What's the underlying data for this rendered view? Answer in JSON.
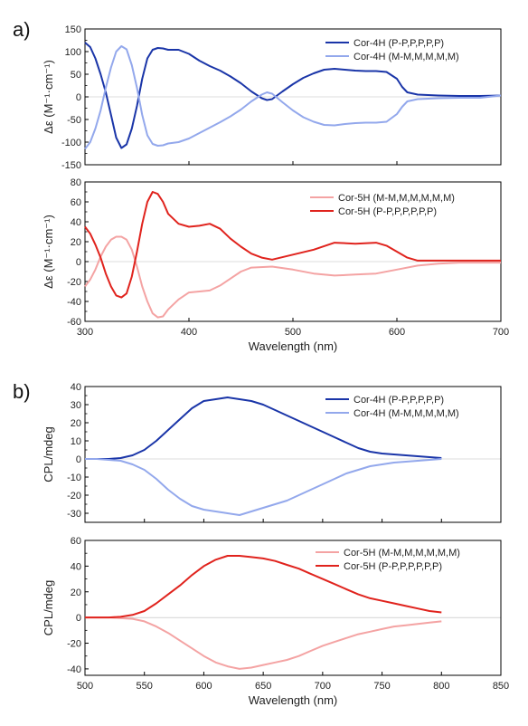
{
  "panel_labels": [
    "a)",
    "b)"
  ],
  "chart_data": [
    {
      "id": "a-top",
      "type": "line",
      "ylabel": "Δε (M⁻¹·cm⁻¹)",
      "xlabel": "",
      "xlim": [
        300,
        700
      ],
      "ylim": [
        -150,
        150
      ],
      "xticks": [],
      "yticks": [
        -150,
        -100,
        -50,
        0,
        50,
        100,
        150
      ],
      "legend_position": "top-right",
      "series": [
        {
          "name": "Cor-4H (P-P,P,P,P,P)",
          "color": "#1a35a8",
          "x": [
            300,
            305,
            310,
            315,
            320,
            325,
            330,
            335,
            340,
            345,
            350,
            355,
            360,
            365,
            370,
            375,
            380,
            390,
            400,
            410,
            420,
            430,
            440,
            450,
            460,
            470,
            475,
            480,
            490,
            500,
            510,
            520,
            530,
            540,
            550,
            560,
            570,
            580,
            590,
            600,
            605,
            610,
            620,
            640,
            660,
            680,
            700
          ],
          "y": [
            120,
            110,
            85,
            50,
            10,
            -40,
            -90,
            -113,
            -105,
            -70,
            -20,
            40,
            85,
            104,
            108,
            107,
            104,
            104,
            95,
            80,
            68,
            58,
            45,
            30,
            12,
            -3,
            -7,
            -5,
            12,
            28,
            42,
            52,
            60,
            62,
            60,
            58,
            57,
            57,
            55,
            40,
            22,
            10,
            5,
            3,
            2,
            2,
            3
          ]
        },
        {
          "name": "Cor-4H (M-M,M,M,M,M)",
          "color": "#93a8ec",
          "x": [
            300,
            305,
            310,
            315,
            320,
            325,
            330,
            335,
            340,
            345,
            350,
            355,
            360,
            365,
            370,
            375,
            380,
            390,
            400,
            410,
            420,
            430,
            440,
            450,
            460,
            470,
            475,
            480,
            490,
            500,
            510,
            520,
            530,
            540,
            550,
            560,
            570,
            580,
            590,
            600,
            605,
            610,
            620,
            640,
            660,
            680,
            700
          ],
          "y": [
            -115,
            -100,
            -70,
            -30,
            20,
            65,
            100,
            112,
            105,
            70,
            20,
            -40,
            -85,
            -104,
            -108,
            -107,
            -103,
            -100,
            -92,
            -80,
            -68,
            -56,
            -43,
            -28,
            -10,
            5,
            10,
            7,
            -12,
            -30,
            -45,
            -55,
            -62,
            -63,
            -60,
            -58,
            -57,
            -57,
            -55,
            -38,
            -22,
            -10,
            -5,
            -3,
            -2,
            -2,
            3
          ]
        }
      ]
    },
    {
      "id": "a-bottom",
      "type": "line",
      "ylabel": "Δε (M⁻¹·cm⁻¹)",
      "xlabel": "Wavelength (nm)",
      "xlim": [
        300,
        700
      ],
      "ylim": [
        -60,
        80
      ],
      "xticks": [
        300,
        400,
        500,
        600,
        700
      ],
      "yticks": [
        -60,
        -40,
        -20,
        0,
        20,
        40,
        60,
        80
      ],
      "legend_position": "top-right",
      "series": [
        {
          "name": "Cor-5H (M-M,M,M,M,M,M)",
          "color": "#f4a3a3",
          "x": [
            300,
            305,
            310,
            315,
            320,
            325,
            330,
            335,
            340,
            345,
            350,
            355,
            360,
            365,
            370,
            375,
            380,
            390,
            400,
            410,
            420,
            430,
            440,
            450,
            460,
            480,
            500,
            520,
            540,
            560,
            580,
            600,
            620,
            640,
            660,
            680,
            700
          ],
          "y": [
            -25,
            -18,
            -8,
            5,
            15,
            22,
            25,
            25,
            22,
            12,
            -5,
            -25,
            -40,
            -52,
            -56,
            -55,
            -48,
            -38,
            -31,
            -30,
            -29,
            -24,
            -17,
            -10,
            -6,
            -5,
            -8,
            -12,
            -14,
            -13,
            -12,
            -8,
            -4,
            -2,
            -1,
            -1,
            -1
          ]
        },
        {
          "name": "Cor-5H (P-P,P,P,P,P,P)",
          "color": "#e0231d",
          "x": [
            300,
            305,
            310,
            315,
            320,
            325,
            330,
            335,
            340,
            345,
            350,
            355,
            360,
            365,
            370,
            375,
            380,
            390,
            400,
            410,
            420,
            430,
            440,
            450,
            460,
            470,
            480,
            500,
            520,
            540,
            560,
            580,
            590,
            600,
            610,
            620,
            640,
            660,
            680,
            700
          ],
          "y": [
            35,
            28,
            17,
            4,
            -12,
            -25,
            -34,
            -36,
            -32,
            -15,
            10,
            38,
            60,
            70,
            68,
            60,
            48,
            38,
            35,
            36,
            38,
            33,
            23,
            15,
            8,
            4,
            2,
            7,
            12,
            19,
            18,
            19,
            16,
            10,
            4,
            1,
            1,
            1,
            1,
            1
          ]
        }
      ]
    },
    {
      "id": "b-top",
      "type": "line",
      "ylabel": "CPL/mdeg",
      "xlabel": "",
      "xlim": [
        500,
        850
      ],
      "ylim": [
        -35,
        40
      ],
      "xticks": [],
      "yticks": [
        -30,
        -20,
        -10,
        0,
        10,
        20,
        30,
        40
      ],
      "legend_position": "top-right",
      "series": [
        {
          "name": "Cor-4H (P-P,P,P,P,P)",
          "color": "#1a35a8",
          "x": [
            500,
            510,
            520,
            530,
            540,
            550,
            560,
            570,
            580,
            590,
            600,
            610,
            620,
            630,
            640,
            650,
            660,
            670,
            680,
            690,
            700,
            710,
            720,
            730,
            740,
            750,
            760,
            770,
            780,
            790,
            800
          ],
          "y": [
            0,
            0,
            0,
            0.5,
            2,
            5,
            10,
            16,
            22,
            28,
            32,
            33,
            34,
            33,
            32,
            30,
            27,
            24,
            21,
            18,
            15,
            12,
            9,
            6,
            4,
            3,
            2.5,
            2,
            1.5,
            1,
            0.5
          ]
        },
        {
          "name": "Cor-4H (M-M,M,M,M,M)",
          "color": "#93a8ec",
          "x": [
            500,
            510,
            520,
            530,
            540,
            550,
            560,
            570,
            580,
            590,
            600,
            610,
            620,
            630,
            640,
            650,
            660,
            670,
            680,
            690,
            700,
            710,
            720,
            730,
            740,
            750,
            760,
            770,
            780,
            790,
            800
          ],
          "y": [
            0,
            0,
            -0.5,
            -1,
            -3,
            -6,
            -11,
            -17,
            -22,
            -26,
            -28,
            -29,
            -30,
            -31,
            -29,
            -27,
            -25,
            -23,
            -20,
            -17,
            -14,
            -11,
            -8,
            -6,
            -4,
            -3,
            -2,
            -1.5,
            -1,
            -0.5,
            0
          ]
        }
      ]
    },
    {
      "id": "b-bottom",
      "type": "line",
      "ylabel": "CPL/mdeg",
      "xlabel": "Wavelength (nm)",
      "xlim": [
        500,
        850
      ],
      "ylim": [
        -45,
        60
      ],
      "xticks": [
        500,
        550,
        600,
        650,
        700,
        750,
        800,
        850
      ],
      "yticks": [
        -40,
        -20,
        0,
        20,
        40,
        60
      ],
      "legend_position": "top-right",
      "series": [
        {
          "name": "Cor-5H (M-M,M,M,M,M,M)",
          "color": "#f4a3a3",
          "x": [
            500,
            510,
            520,
            530,
            540,
            550,
            560,
            570,
            580,
            590,
            600,
            610,
            620,
            630,
            640,
            650,
            660,
            670,
            680,
            690,
            700,
            710,
            720,
            730,
            740,
            750,
            760,
            770,
            780,
            790,
            800
          ],
          "y": [
            0,
            0,
            0,
            -0.5,
            -1,
            -3,
            -7,
            -12,
            -18,
            -24,
            -30,
            -35,
            -38,
            -40,
            -39,
            -37,
            -35,
            -33,
            -30,
            -26,
            -22,
            -19,
            -16,
            -13,
            -11,
            -9,
            -7,
            -6,
            -5,
            -4,
            -3
          ]
        },
        {
          "name": "Cor-5H (P-P,P,P,P,P,P)",
          "color": "#e0231d",
          "x": [
            500,
            510,
            520,
            530,
            540,
            550,
            560,
            570,
            580,
            590,
            600,
            610,
            620,
            630,
            640,
            650,
            660,
            670,
            680,
            690,
            700,
            710,
            720,
            730,
            740,
            750,
            760,
            770,
            780,
            790,
            800
          ],
          "y": [
            0,
            0,
            0,
            0.5,
            2,
            5,
            11,
            18,
            25,
            33,
            40,
            45,
            48,
            48,
            47,
            46,
            44,
            41,
            38,
            34,
            30,
            26,
            22,
            18,
            15,
            13,
            11,
            9,
            7,
            5,
            4
          ]
        }
      ]
    }
  ]
}
